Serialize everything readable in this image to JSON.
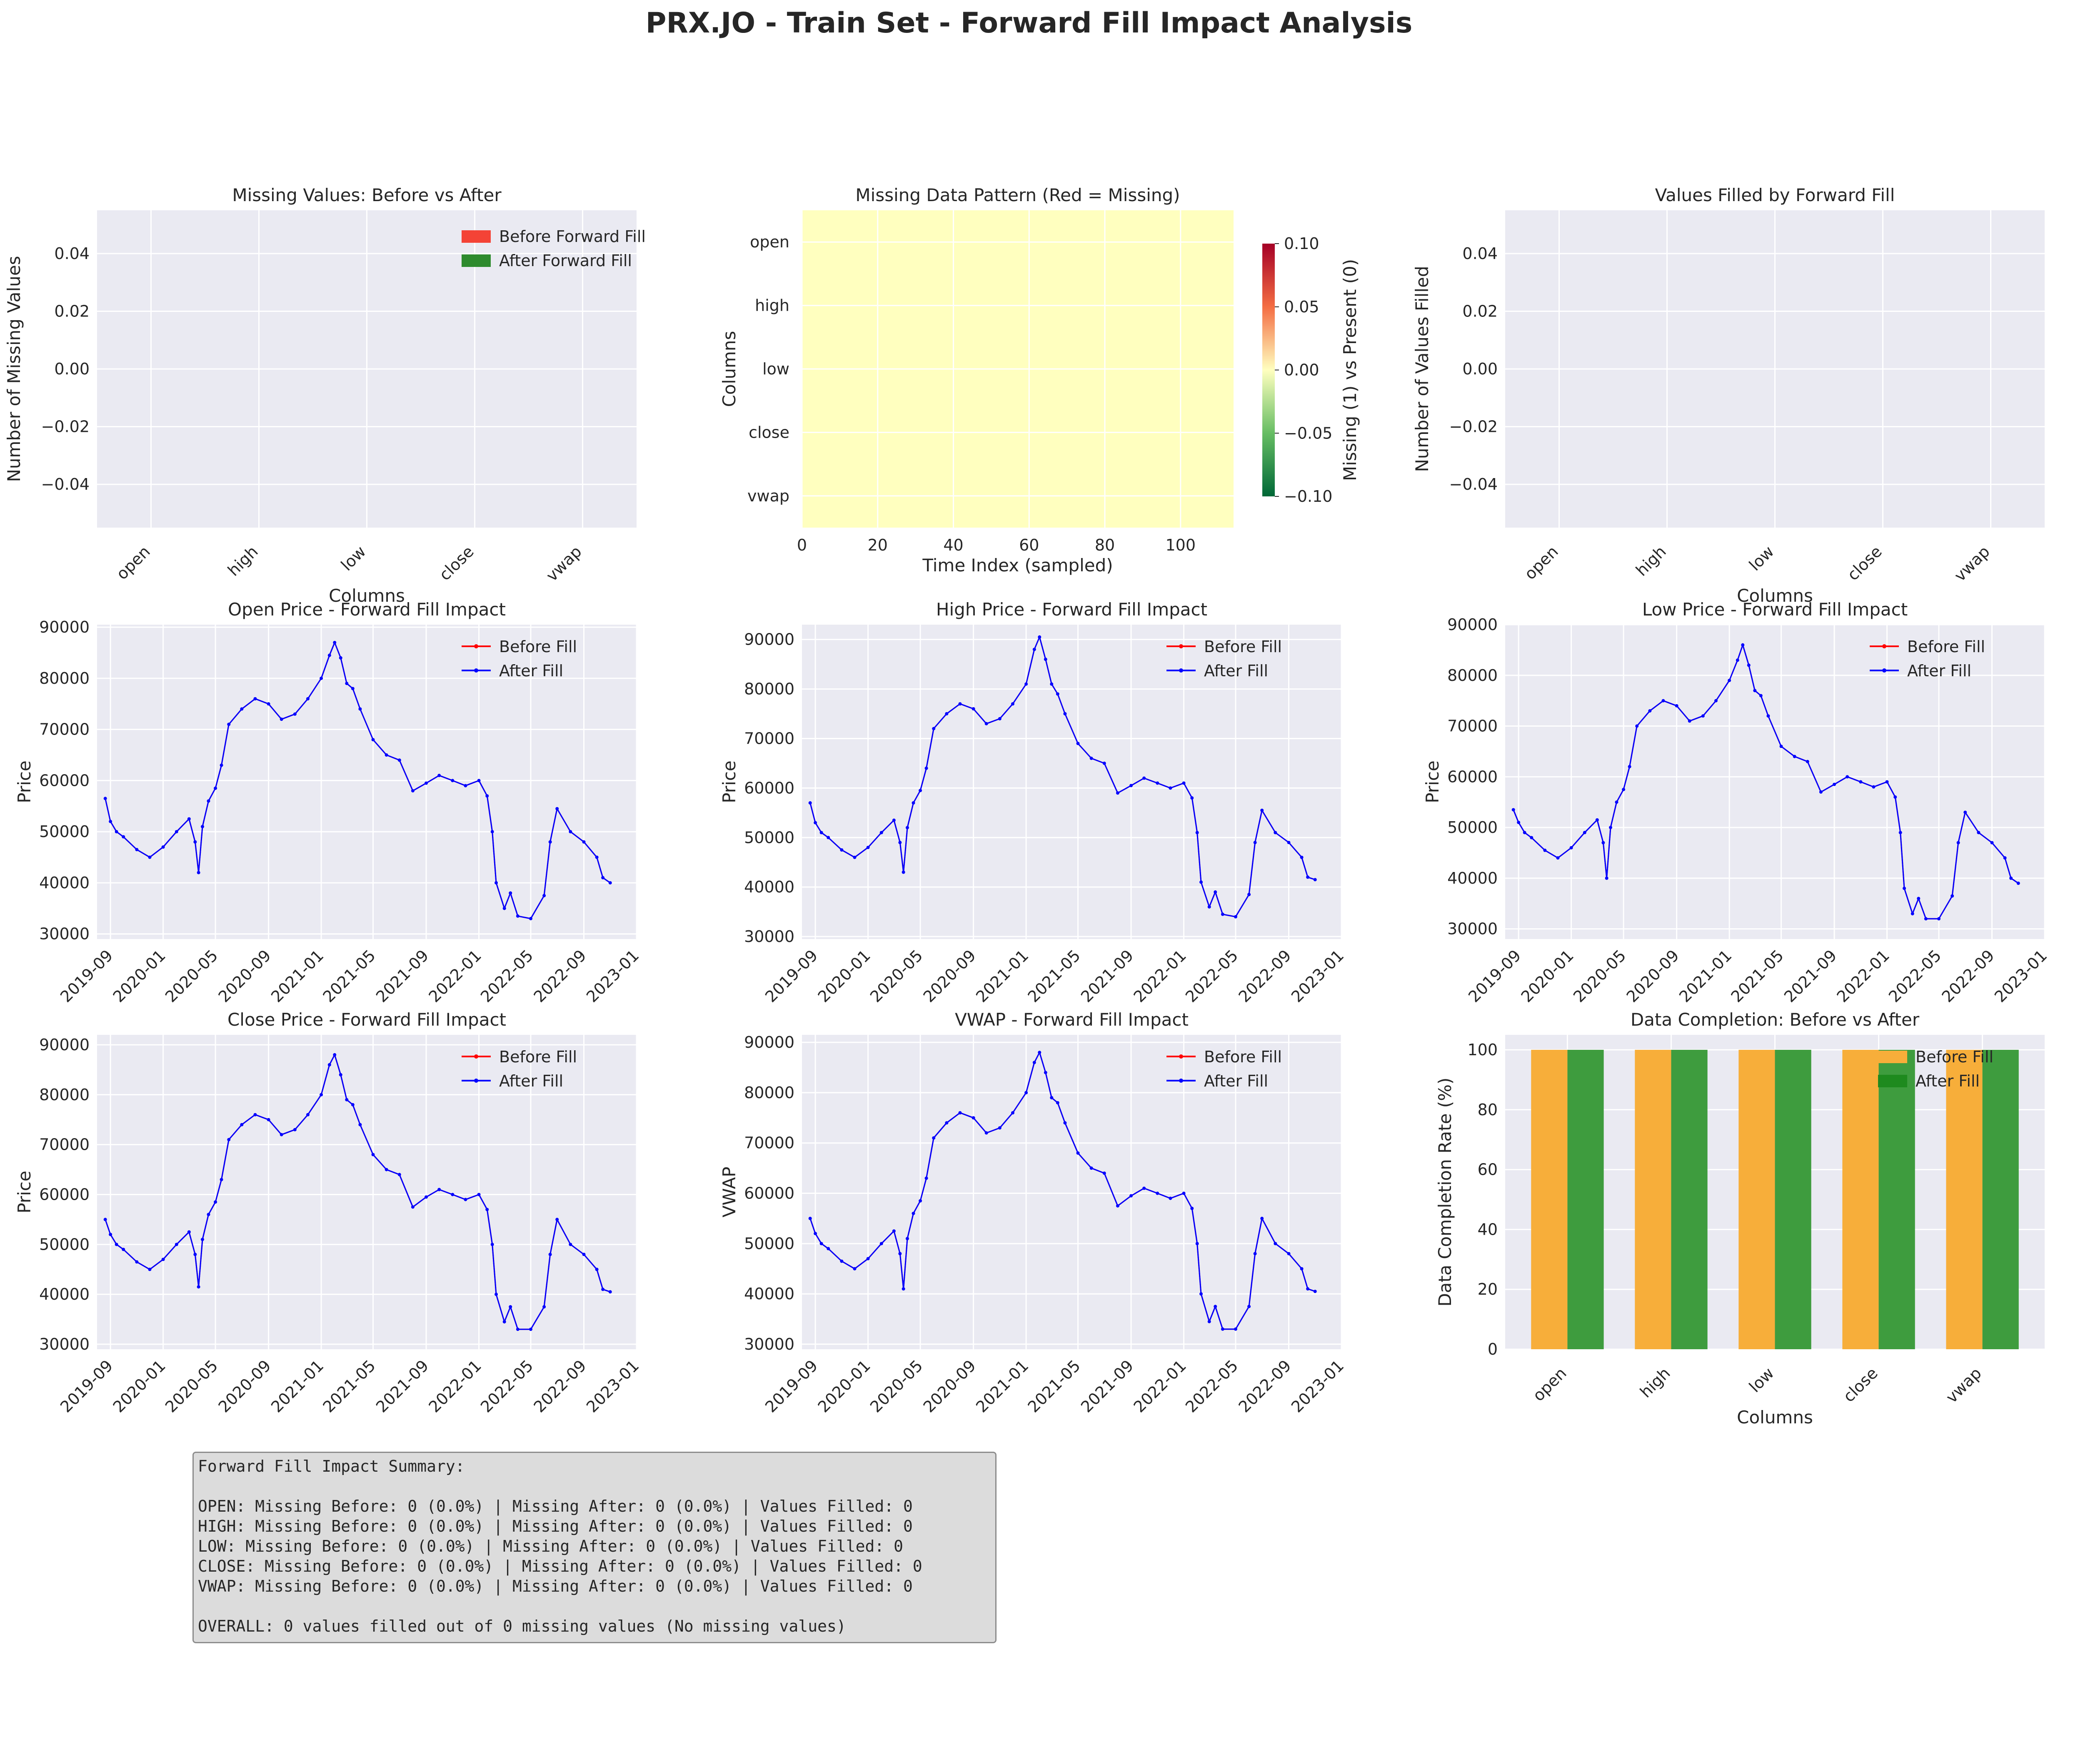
{
  "title": "PRX.JO - Train Set - Forward Fill Impact Analysis",
  "colors": {
    "panel_bg": "#EAEAF2",
    "before_bar": "#F44336",
    "after_bar": "#2E8B2E",
    "before_line": "#FF0000",
    "after_line": "#0000FF",
    "completion_before": "#F7AE3A",
    "completion_after": "#3E9C3E",
    "heatmap_fill": "#FFFFBF"
  },
  "chart_data": [
    {
      "id": "missing-before-after",
      "type": "bar",
      "title": "Missing Values: Before vs After",
      "xlabel": "Columns",
      "ylabel": "Number of Missing Values",
      "categories": [
        "open",
        "high",
        "low",
        "close",
        "vwap"
      ],
      "series": [
        {
          "name": "Before Forward Fill",
          "values": [
            0,
            0,
            0,
            0,
            0
          ]
        },
        {
          "name": "After Forward Fill",
          "values": [
            0,
            0,
            0,
            0,
            0
          ]
        }
      ],
      "ylim": [
        -0.055,
        0.055
      ],
      "yticks": [
        "0.04",
        "0.02",
        "0.00",
        "−0.02",
        "−0.04"
      ],
      "legend": "upper-right",
      "grid": true
    },
    {
      "id": "missing-pattern",
      "type": "heatmap",
      "title": "Missing Data Pattern (Red = Missing)",
      "xlabel": "Time Index (sampled)",
      "ylabel": "Columns",
      "rows": [
        "open",
        "high",
        "low",
        "close",
        "vwap"
      ],
      "n_columns": 114,
      "all_values": 0,
      "xticks": [
        "0",
        "20",
        "40",
        "60",
        "80",
        "100"
      ],
      "colorbar": {
        "label": "Missing (1) vs Present (0)",
        "ticks": [
          "0.10",
          "0.05",
          "0.00",
          "−0.05",
          "−0.10"
        ],
        "range": [
          -0.1,
          0.1
        ],
        "colormap": "RdYlGn_r"
      }
    },
    {
      "id": "values-filled",
      "type": "bar",
      "title": "Values Filled by Forward Fill",
      "xlabel": "Columns",
      "ylabel": "Number of Values Filled",
      "categories": [
        "open",
        "high",
        "low",
        "close",
        "vwap"
      ],
      "values": [
        0,
        0,
        0,
        0,
        0
      ],
      "ylim": [
        -0.055,
        0.055
      ],
      "yticks": [
        "0.04",
        "0.02",
        "0.00",
        "−0.02",
        "−0.04"
      ],
      "grid": true
    },
    {
      "id": "open",
      "type": "line",
      "title": "Open Price - Forward Fill Impact",
      "xlabel": "",
      "ylabel": "Price",
      "ylim": [
        29000,
        90500
      ],
      "yticks": [
        "90000",
        "80000",
        "70000",
        "60000",
        "50000",
        "40000",
        "30000"
      ],
      "series_names": [
        "Before Fill",
        "After Fill"
      ]
    },
    {
      "id": "high",
      "type": "line",
      "title": "High Price - Forward Fill Impact",
      "xlabel": "",
      "ylabel": "Price",
      "ylim": [
        29500,
        93000
      ],
      "yticks": [
        "90000",
        "80000",
        "70000",
        "60000",
        "50000",
        "40000",
        "30000"
      ],
      "series_names": [
        "Before Fill",
        "After Fill"
      ]
    },
    {
      "id": "low",
      "type": "line",
      "title": "Low Price - Forward Fill Impact",
      "xlabel": "",
      "ylabel": "Price",
      "ylim": [
        28000,
        90000
      ],
      "yticks": [
        "90000",
        "80000",
        "70000",
        "60000",
        "50000",
        "40000",
        "30000"
      ],
      "series_names": [
        "Before Fill",
        "After Fill"
      ]
    },
    {
      "id": "close",
      "type": "line",
      "title": "Close Price - Forward Fill Impact",
      "xlabel": "",
      "ylabel": "Price",
      "ylim": [
        29000,
        92000
      ],
      "yticks": [
        "90000",
        "80000",
        "70000",
        "60000",
        "50000",
        "40000",
        "30000"
      ],
      "series_names": [
        "Before Fill",
        "After Fill"
      ]
    },
    {
      "id": "vwap",
      "type": "line",
      "title": "VWAP - Forward Fill Impact",
      "xlabel": "",
      "ylabel": "VWAP",
      "ylim": [
        29000,
        91500
      ],
      "yticks": [
        "90000",
        "80000",
        "70000",
        "60000",
        "50000",
        "40000",
        "30000"
      ],
      "series_names": [
        "Before Fill",
        "After Fill"
      ]
    },
    {
      "id": "completion",
      "type": "bar",
      "title": "Data Completion: Before vs After",
      "xlabel": "Columns",
      "ylabel": "Data Completion Rate (%)",
      "categories": [
        "open",
        "high",
        "low",
        "close",
        "vwap"
      ],
      "series": [
        {
          "name": "Before Fill",
          "values": [
            100,
            100,
            100,
            100,
            100
          ]
        },
        {
          "name": "After Fill",
          "values": [
            100,
            100,
            100,
            100,
            100
          ]
        }
      ],
      "ylim": [
        0,
        105
      ],
      "yticks": [
        "100",
        "80",
        "60",
        "40",
        "20",
        "0"
      ],
      "legend": "upper-right",
      "grid": true
    }
  ],
  "time_series": {
    "xticks": [
      "2019-09",
      "2020-01",
      "2020-05",
      "2020-09",
      "2021-01",
      "2021-05",
      "2021-09",
      "2022-01",
      "2022-05",
      "2022-09",
      "2023-01"
    ],
    "xlim": [
      "2019-08-01",
      "2023-01-01"
    ],
    "dates": [
      "2019-08-20",
      "2019-09-01",
      "2019-09-15",
      "2019-10-01",
      "2019-11-01",
      "2019-12-01",
      "2020-01-01",
      "2020-02-01",
      "2020-03-01",
      "2020-03-15",
      "2020-03-23",
      "2020-04-01",
      "2020-04-15",
      "2020-05-01",
      "2020-05-15",
      "2020-06-01",
      "2020-07-01",
      "2020-08-01",
      "2020-09-01",
      "2020-10-01",
      "2020-11-01",
      "2020-12-01",
      "2021-01-01",
      "2021-01-20",
      "2021-02-01",
      "2021-02-15",
      "2021-03-01",
      "2021-03-15",
      "2021-04-01",
      "2021-05-01",
      "2021-06-01",
      "2021-07-01",
      "2021-08-01",
      "2021-09-01",
      "2021-10-01",
      "2021-11-01",
      "2021-12-01",
      "2022-01-01",
      "2022-01-20",
      "2022-02-01",
      "2022-02-10",
      "2022-03-01",
      "2022-03-15",
      "2022-04-01",
      "2022-05-01",
      "2022-06-01",
      "2022-06-15",
      "2022-07-01",
      "2022-08-01",
      "2022-09-01",
      "2022-10-01",
      "2022-10-15",
      "2022-11-01"
    ],
    "open": [
      56500,
      52000,
      50000,
      49000,
      46500,
      45000,
      47000,
      50000,
      52500,
      48000,
      42000,
      51000,
      56000,
      58500,
      63000,
      71000,
      74000,
      76000,
      75000,
      72000,
      73000,
      76000,
      80000,
      84500,
      87000,
      84000,
      79000,
      78000,
      74000,
      68000,
      65000,
      64000,
      58000,
      59500,
      61000,
      60000,
      59000,
      60000,
      57000,
      50000,
      40000,
      35000,
      38000,
      33500,
      33000,
      37500,
      48000,
      54500,
      50000,
      48000,
      45000,
      41000,
      40000
    ],
    "high": [
      57000,
      53000,
      51000,
      50000,
      47500,
      46000,
      48000,
      51000,
      53500,
      49000,
      43000,
      52000,
      57000,
      59500,
      64000,
      72000,
      75000,
      77000,
      76000,
      73000,
      74000,
      77000,
      81000,
      88000,
      90500,
      86000,
      81000,
      79000,
      75000,
      69000,
      66000,
      65000,
      59000,
      60500,
      62000,
      61000,
      60000,
      61000,
      58000,
      51000,
      41000,
      36000,
      39000,
      34500,
      34000,
      38500,
      49000,
      55500,
      51000,
      49000,
      46000,
      42000,
      41500
    ],
    "low": [
      53500,
      51000,
      49000,
      48000,
      45500,
      44000,
      46000,
      49000,
      51500,
      47000,
      40000,
      50000,
      55000,
      57500,
      62000,
      70000,
      73000,
      75000,
      74000,
      71000,
      72000,
      75000,
      79000,
      83000,
      86000,
      82000,
      77000,
      76000,
      72000,
      66000,
      64000,
      63000,
      57000,
      58500,
      60000,
      59000,
      58000,
      59000,
      56000,
      49000,
      38000,
      33000,
      36000,
      32000,
      32000,
      36500,
      47000,
      53000,
      49000,
      47000,
      44000,
      40000,
      39000
    ],
    "close": [
      55000,
      52000,
      50000,
      49000,
      46500,
      45000,
      47000,
      50000,
      52500,
      48000,
      41500,
      51000,
      56000,
      58500,
      63000,
      71000,
      74000,
      76000,
      75000,
      72000,
      73000,
      76000,
      80000,
      86000,
      88000,
      84000,
      79000,
      78000,
      74000,
      68000,
      65000,
      64000,
      57500,
      59500,
      61000,
      60000,
      59000,
      60000,
      57000,
      50000,
      40000,
      34500,
      37500,
      33000,
      33000,
      37500,
      48000,
      55000,
      50000,
      48000,
      45000,
      41000,
      40500
    ],
    "vwap": [
      55000,
      52000,
      50000,
      49000,
      46500,
      45000,
      47000,
      50000,
      52500,
      48000,
      41000,
      51000,
      56000,
      58500,
      63000,
      71000,
      74000,
      76000,
      75000,
      72000,
      73000,
      76000,
      80000,
      86000,
      88000,
      84000,
      79000,
      78000,
      74000,
      68000,
      65000,
      64000,
      57500,
      59500,
      61000,
      60000,
      59000,
      60000,
      57000,
      50000,
      40000,
      34500,
      37500,
      33000,
      33000,
      37500,
      48000,
      55000,
      50000,
      48000,
      45000,
      41000,
      40500
    ]
  },
  "summary": {
    "heading": "Forward Fill Impact Summary:",
    "lines": [
      "OPEN: Missing Before: 0 (0.0%) | Missing After: 0 (0.0%) | Values Filled: 0",
      "HIGH: Missing Before: 0 (0.0%) | Missing After: 0 (0.0%) | Values Filled: 0",
      "LOW: Missing Before: 0 (0.0%) | Missing After: 0 (0.0%) | Values Filled: 0",
      "CLOSE: Missing Before: 0 (0.0%) | Missing After: 0 (0.0%) | Values Filled: 0",
      "VWAP: Missing Before: 0 (0.0%) | Missing After: 0 (0.0%) | Values Filled: 0"
    ],
    "overall": "OVERALL: 0 values filled out of 0 missing values (No missing values)"
  }
}
